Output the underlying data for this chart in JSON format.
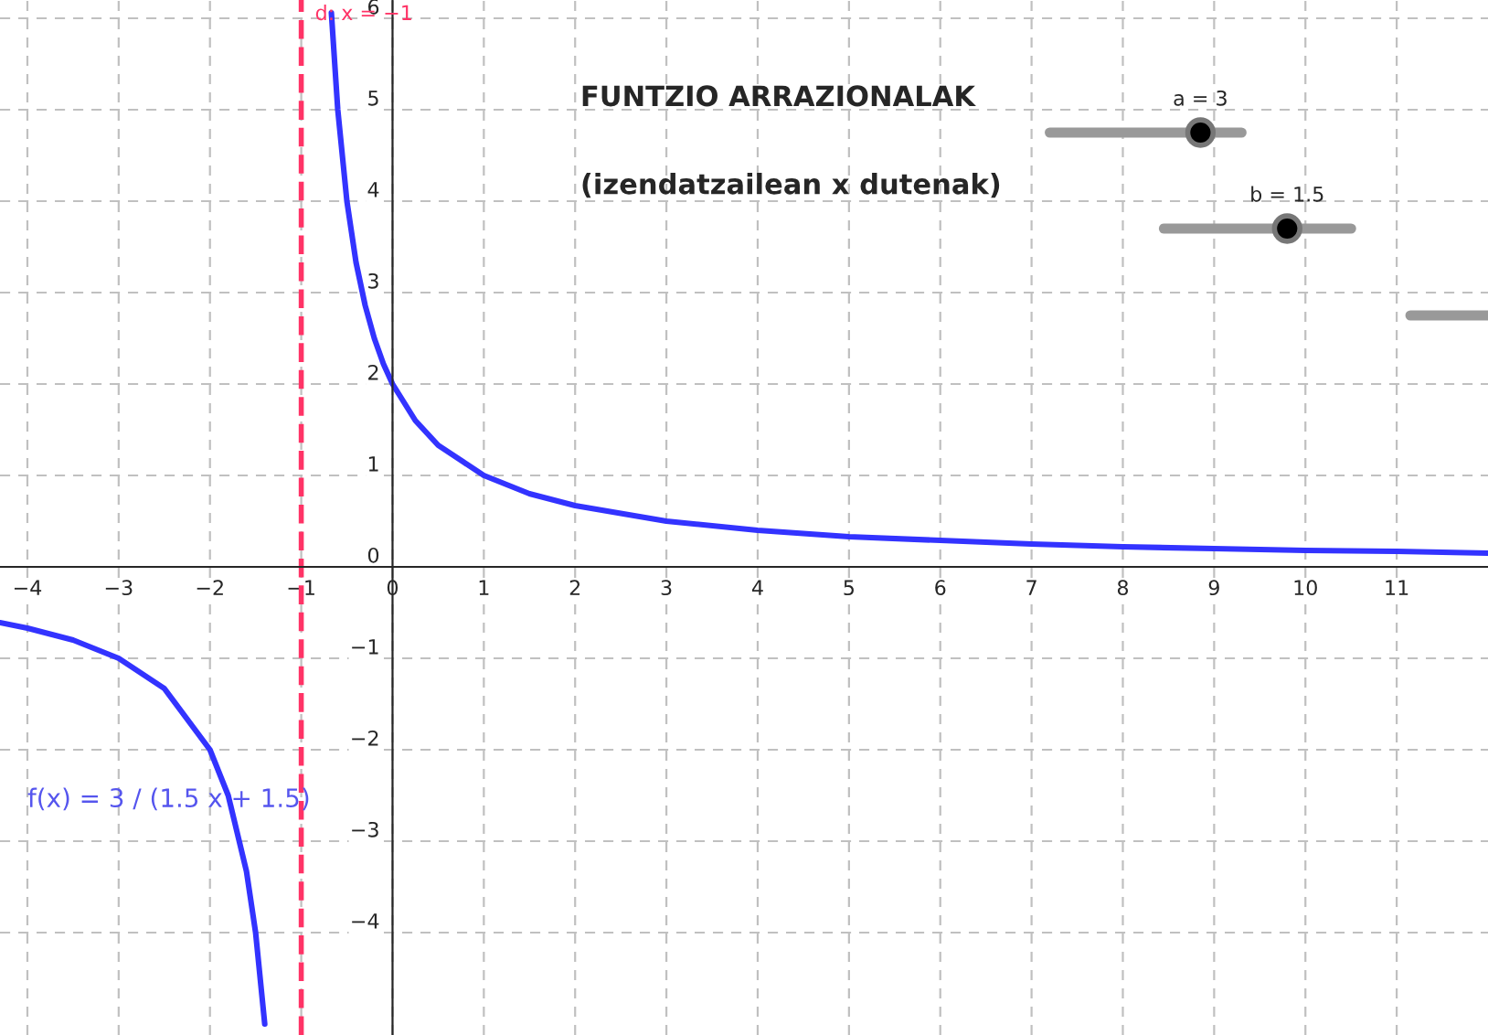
{
  "chart_data": {
    "type": "line",
    "title": "FUNTZIO ARRAZIONALAK",
    "subtitle": "(izendatzailean x dutenak)",
    "x": [
      -4.3,
      -4,
      -3.5,
      -3,
      -2.5,
      -2,
      -1.8,
      -1.6,
      -1.5,
      -1.4,
      -1,
      -0.67,
      -0.6,
      -0.5,
      -0.4,
      -0.3,
      -0.2,
      -0.1,
      0,
      0.25,
      0.5,
      1,
      1.5,
      2,
      3,
      4,
      5,
      6,
      7,
      8,
      9,
      10,
      11,
      12
    ],
    "series": [
      {
        "color": "#3333ff",
        "values": [
          -0.61,
          -0.67,
          -0.8,
          -1,
          -1.33,
          -2,
          -2.5,
          -3.33,
          -4,
          -5,
          null,
          6.06,
          5,
          4,
          3.33,
          2.86,
          2.5,
          2.22,
          2,
          1.6,
          1.33,
          1,
          0.8,
          0.67,
          0.5,
          0.4,
          0.33,
          0.29,
          0.25,
          0.22,
          0.2,
          0.18,
          0.17,
          0.15
        ]
      }
    ],
    "xlim": [
      -4.3,
      12
    ],
    "ylim": [
      -5.12,
      6.2
    ],
    "xticks": [
      {
        "value": -4,
        "label": "−4"
      },
      {
        "value": -3,
        "label": "−3"
      },
      {
        "value": -2,
        "label": "−2"
      },
      {
        "value": -1,
        "label": "−1"
      },
      0,
      1,
      2,
      3,
      4,
      5,
      6,
      7,
      8,
      9,
      10,
      11
    ],
    "yticks": [
      {
        "value": -4,
        "label": "−4"
      },
      {
        "value": -3,
        "label": "−3"
      },
      {
        "value": -2,
        "label": "−2"
      },
      {
        "value": -1,
        "label": "−1"
      },
      0,
      1,
      2,
      3,
      4,
      5,
      6
    ],
    "grid": true,
    "line_style": "solid",
    "marker": "none",
    "ref_lines": [
      {
        "axis": "x",
        "value": -1,
        "label": "d: x = −1",
        "color": "#ff3366",
        "line_style": "dashed"
      }
    ],
    "annotations": [
      "a = 3",
      "b = 1.5",
      "f(x) = 3 / (1.5 x + 1.5)"
    ]
  }
}
